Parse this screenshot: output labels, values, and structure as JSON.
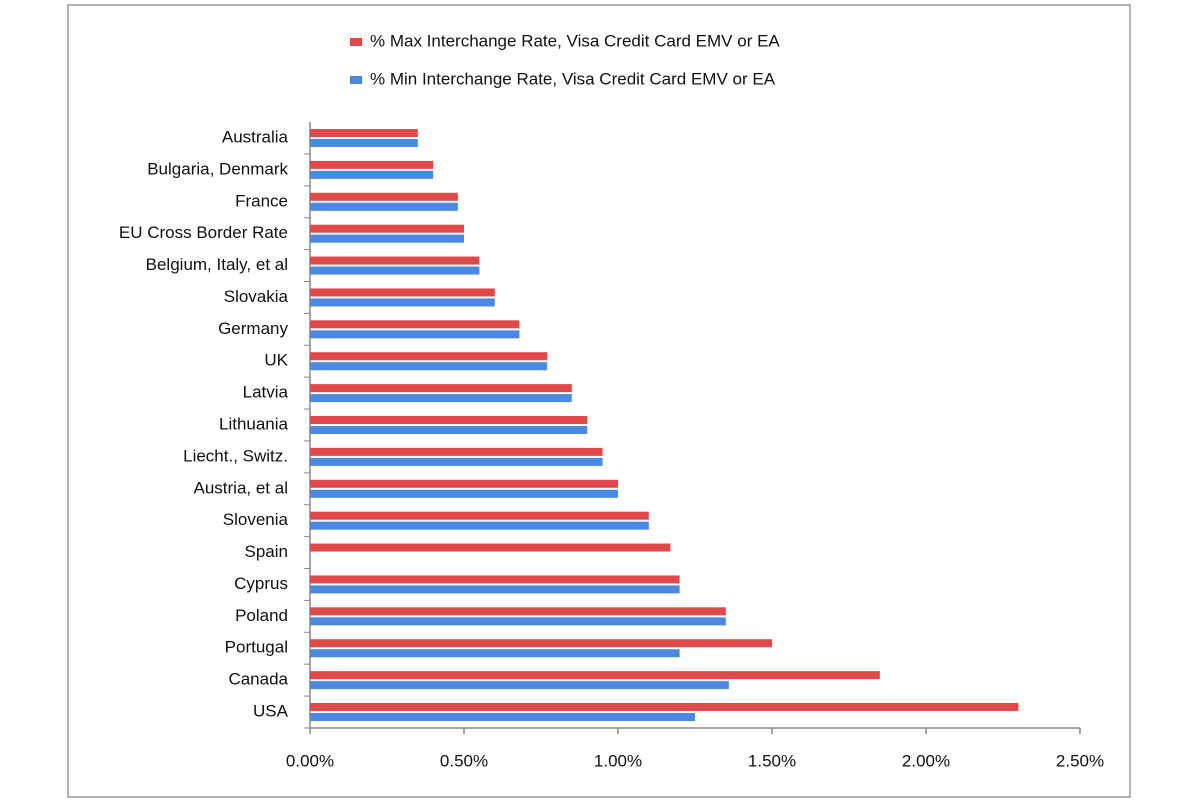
{
  "chart_data": {
    "type": "bar",
    "orientation": "horizontal",
    "categories": [
      "Australia",
      "Bulgaria, Denmark",
      "France",
      "EU Cross Border Rate",
      "Belgium, Italy, et al",
      "Slovakia",
      "Germany",
      "UK",
      "Latvia",
      "Lithuania",
      "Liecht., Switz.",
      "Austria, et al",
      "Slovenia",
      "Spain",
      "Cyprus",
      "Poland",
      "Portugal",
      "Canada",
      "USA"
    ],
    "series": [
      {
        "name": "% Max Interchange Rate, Visa Credit Card EMV or EA",
        "color": "#e0484a",
        "values": [
          0.35,
          0.4,
          0.48,
          0.5,
          0.55,
          0.6,
          0.68,
          0.77,
          0.85,
          0.9,
          0.95,
          1.0,
          1.1,
          1.17,
          1.2,
          1.35,
          1.5,
          1.85,
          2.3
        ]
      },
      {
        "name": "% Min Interchange Rate, Visa Credit Card EMV or EA",
        "color": "#4a88e2",
        "values": [
          0.35,
          0.4,
          0.48,
          0.5,
          0.55,
          0.6,
          0.68,
          0.77,
          0.85,
          0.9,
          0.95,
          1.0,
          1.1,
          null,
          1.2,
          1.35,
          1.2,
          1.36,
          1.25
        ]
      }
    ],
    "xlim": [
      0,
      2.5
    ],
    "xticks": [
      {
        "value": 0,
        "label": "0.00%"
      },
      {
        "value": 0.5,
        "label": "0.50%"
      },
      {
        "value": 1,
        "label": "1.00%"
      },
      {
        "value": 1.5,
        "label": "1.50%"
      },
      {
        "value": 2,
        "label": "2.00%"
      },
      {
        "value": 2.5,
        "label": "2.50%"
      }
    ],
    "grid": false,
    "legend": "top"
  }
}
